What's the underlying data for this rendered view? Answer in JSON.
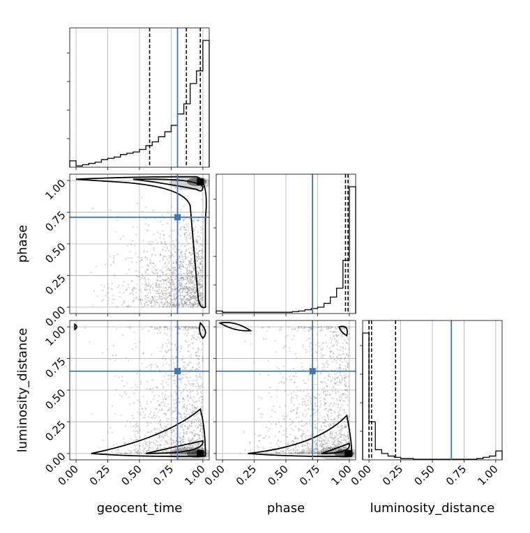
{
  "chart_data": {
    "type": "corner",
    "parameters": [
      "geocent_time",
      "phase",
      "luminosity_distance"
    ],
    "axis_labels": {
      "x": [
        "geocent_time",
        "phase",
        "luminosity_distance"
      ],
      "y": [
        "phase",
        "luminosity_distance"
      ]
    },
    "ticks": [
      0.0,
      0.25,
      0.5,
      0.75,
      1.0
    ],
    "tick_labels": [
      "0.00",
      "0.25",
      "0.50",
      "0.75",
      "1.00"
    ],
    "range": [
      -0.05,
      1.05
    ],
    "grid": true,
    "truth_color": "#4477aa",
    "truths": {
      "geocent_time": 0.8,
      "phase": 0.71,
      "luminosity_distance": 0.65
    },
    "quantiles": {
      "geocent_time": [
        0.58,
        0.87,
        0.98
      ],
      "phase": [
        0.71,
        0.97,
        0.99
      ],
      "luminosity_distance": [
        0.0,
        0.02,
        0.21
      ]
    },
    "histograms": {
      "geocent_time": {
        "bin_edges": [
          -0.05,
          0.0,
          0.05,
          0.1,
          0.15,
          0.2,
          0.25,
          0.3,
          0.35,
          0.4,
          0.45,
          0.5,
          0.55,
          0.6,
          0.65,
          0.7,
          0.75,
          0.8,
          0.85,
          0.9,
          0.95,
          1.0,
          1.05
        ],
        "heights": [
          0.05,
          0.01,
          0.02,
          0.03,
          0.04,
          0.06,
          0.07,
          0.08,
          0.1,
          0.11,
          0.12,
          0.14,
          0.17,
          0.2,
          0.24,
          0.28,
          0.33,
          0.42,
          0.5,
          0.66,
          0.76,
          1.0
        ]
      },
      "phase": {
        "bin_edges": [
          -0.05,
          0.0,
          0.05,
          0.1,
          0.15,
          0.2,
          0.25,
          0.3,
          0.35,
          0.4,
          0.45,
          0.5,
          0.55,
          0.6,
          0.65,
          0.7,
          0.75,
          0.8,
          0.85,
          0.9,
          0.95,
          1.0,
          1.05
        ],
        "heights": [
          0.02,
          0.01,
          0.01,
          0.01,
          0.01,
          0.01,
          0.01,
          0.01,
          0.01,
          0.01,
          0.01,
          0.01,
          0.015,
          0.02,
          0.03,
          0.04,
          0.05,
          0.08,
          0.13,
          0.2,
          0.42,
          1.0
        ]
      },
      "luminosity_distance": {
        "bin_edges": [
          -0.05,
          0.0,
          0.05,
          0.1,
          0.15,
          0.2,
          0.25,
          0.3,
          0.35,
          0.4,
          0.45,
          0.5,
          0.55,
          0.6,
          0.65,
          0.7,
          0.75,
          0.8,
          0.85,
          0.9,
          0.95,
          1.0,
          1.05
        ],
        "heights": [
          1.0,
          0.3,
          0.08,
          0.05,
          0.03,
          0.02,
          0.01,
          0.01,
          0.005,
          0.005,
          0.005,
          0.005,
          0.005,
          0.005,
          0.005,
          0.005,
          0.005,
          0.005,
          0.01,
          0.02,
          0.03,
          0.07
        ]
      }
    }
  }
}
